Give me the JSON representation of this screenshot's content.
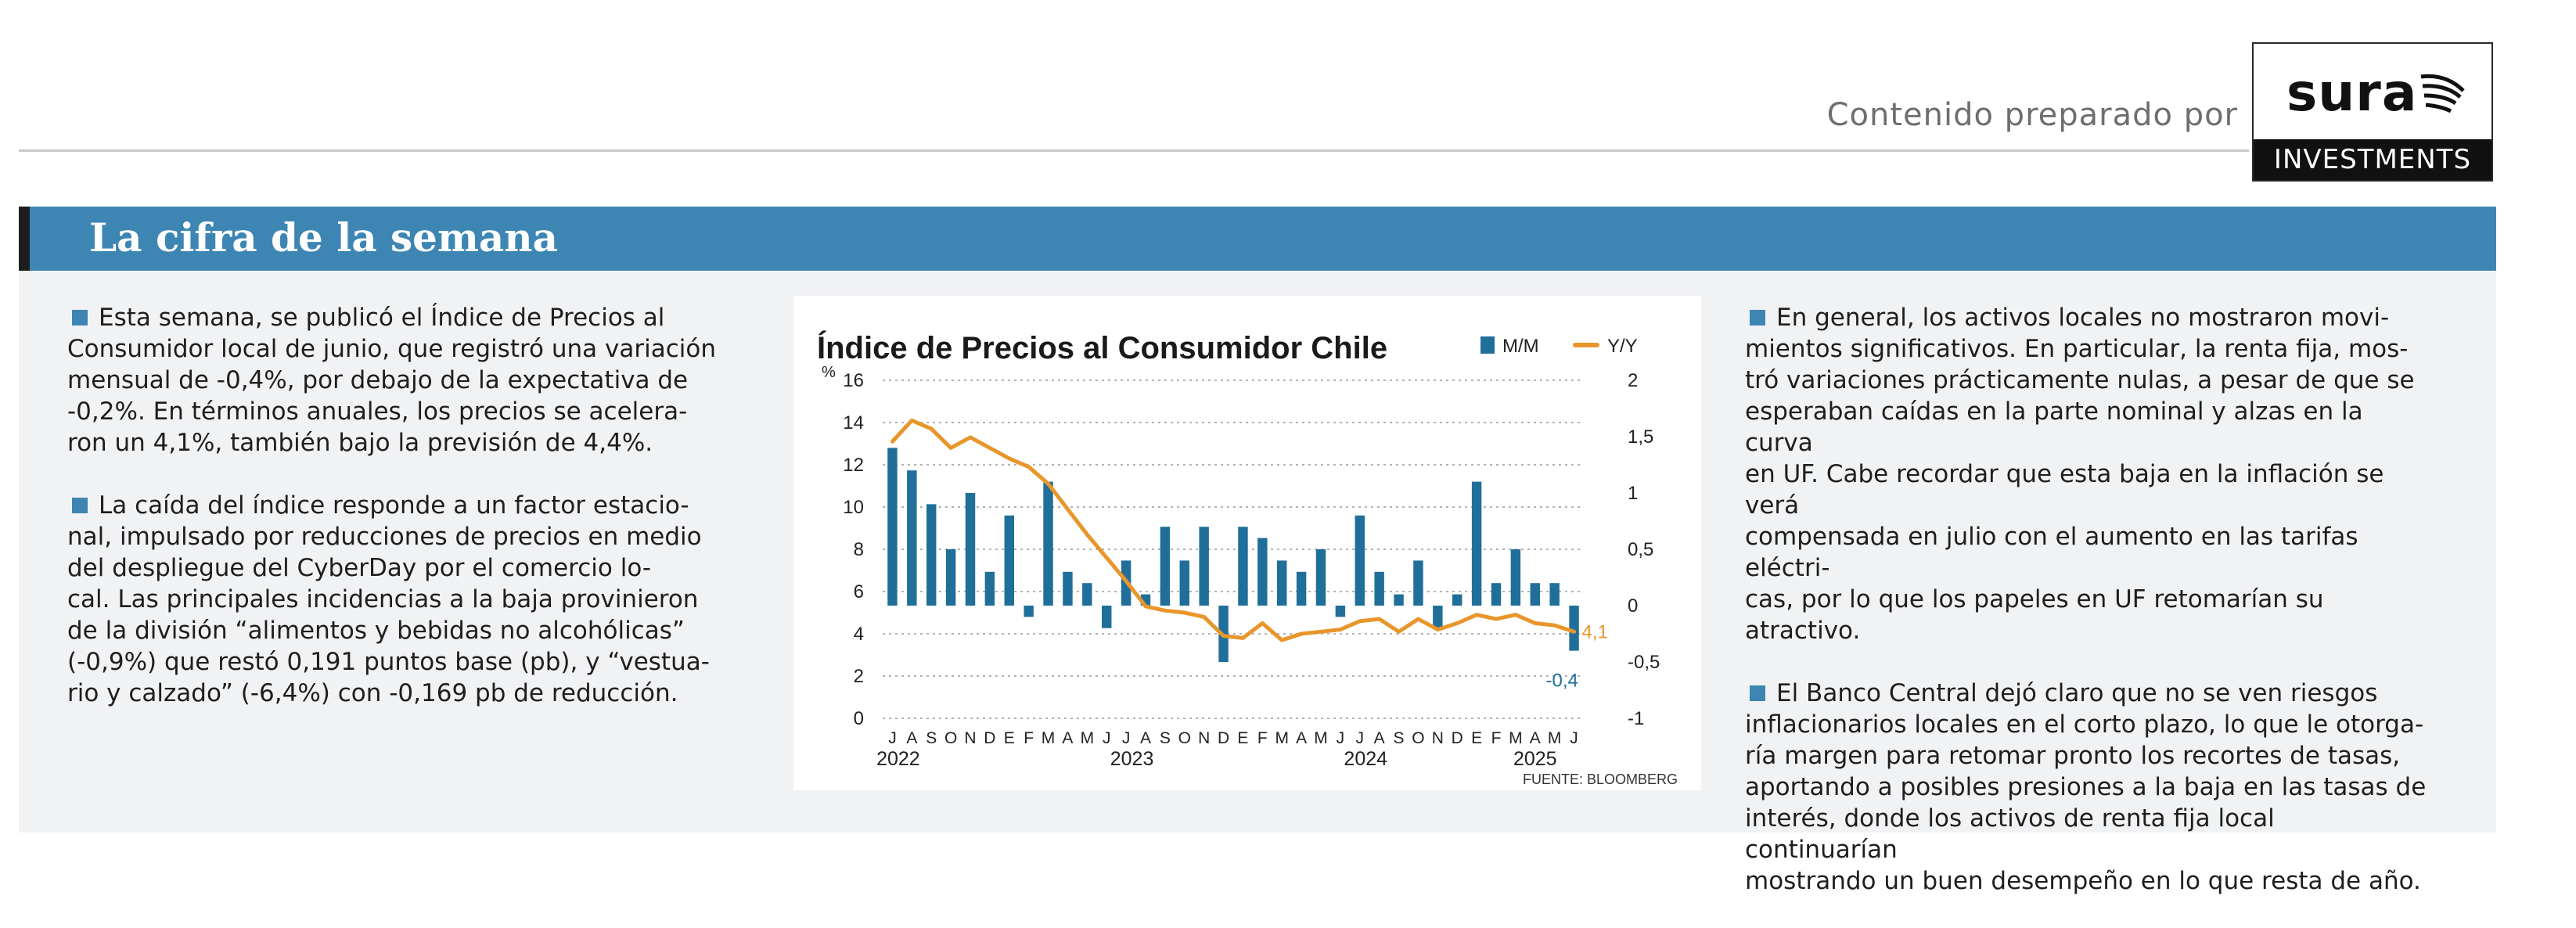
{
  "header": {
    "credit": "Contenido preparado por",
    "logo_word": "sura",
    "logo_sub": "INVESTMENTS"
  },
  "section": {
    "title": "La cifra de la semana"
  },
  "left_column": {
    "paragraphs": [
      [
        "Esta semana, se publicó el Índice de Precios al",
        "Consumidor local de junio, que registró una variación",
        "mensual de -0,4%, por debajo de la expectativa de",
        "-0,2%. En términos anuales, los precios se acelera-",
        "ron un 4,1%, también bajo la previsión de 4,4%."
      ],
      [
        "La caída del índice responde a un factor estacio-",
        "nal, impulsado por reducciones de precios en medio",
        "del despliegue del CyberDay por el comercio lo-",
        "cal. Las principales incidencias a la baja provinieron",
        "de la división “alimentos y bebidas no alcohólicas”",
        "(-0,9%) que restó 0,191 puntos base (pb), y “vestua-",
        "rio y calzado” (-6,4%) con -0,169 pb de reducción."
      ]
    ]
  },
  "right_column": {
    "paragraphs": [
      [
        "En general, los activos locales no mostraron movi-",
        "mientos significativos. En particular, la renta fija, mos-",
        "tró variaciones prácticamente nulas, a pesar de que se",
        "esperaban caídas en la parte nominal y alzas en la curva",
        "en UF. Cabe recordar que esta baja en la inflación se verá",
        "compensada en julio con el aumento en las tarifas eléctri-",
        "cas, por lo que los papeles en UF retomarían su atractivo."
      ],
      [
        "El Banco Central dejó claro que no se ven riesgos",
        "inflacionarios locales en el corto plazo, lo que le otorga-",
        "ría margen para retomar pronto los recortes de tasas,",
        "aportando a posibles presiones a la baja en las tasas de",
        "interés, donde los activos de renta fija local continuarían",
        "mostrando un buen desempeño en lo que resta de año."
      ]
    ]
  },
  "chart_data": {
    "type": "bar",
    "title": "Índice de Precios al Consumidor Chile",
    "source": "FUENTE: BLOOMBERG",
    "left_unit": "%",
    "colors": {
      "bar": "#1f6f9a",
      "line": "#e8962b",
      "grid": "#9a9a9a"
    },
    "categories": [
      "J",
      "A",
      "S",
      "O",
      "N",
      "D",
      "E",
      "F",
      "M",
      "A",
      "M",
      "J",
      "J",
      "A",
      "S",
      "O",
      "N",
      "D",
      "E",
      "F",
      "M",
      "A",
      "M",
      "J",
      "J",
      "A",
      "S",
      "O",
      "N",
      "D",
      "E",
      "F",
      "M",
      "A",
      "M",
      "J"
    ],
    "year_labels": [
      {
        "label": "2022",
        "index": 0.8
      },
      {
        "label": "2023",
        "index": 12.8
      },
      {
        "label": "2024",
        "index": 24.8
      },
      {
        "label": "2025",
        "index": 33.5
      }
    ],
    "left_axis": {
      "ylim": [
        0,
        16
      ],
      "ticks": [
        0,
        2,
        4,
        6,
        8,
        10,
        12,
        14,
        16
      ],
      "tick_labels": [
        "0",
        "2",
        "4",
        "6",
        "8",
        "10",
        "12",
        "14",
        "16"
      ]
    },
    "right_axis": {
      "ylim": [
        -1,
        2
      ],
      "ticks": [
        -1,
        -0.5,
        0,
        0.5,
        1,
        1.5,
        2
      ],
      "tick_labels": [
        "-1",
        "-0,5",
        "0",
        "0,5",
        "1",
        "1,5",
        "2"
      ]
    },
    "series": [
      {
        "name": "M/M",
        "kind": "bar",
        "axis": "right",
        "values": [
          1.4,
          1.2,
          0.9,
          0.5,
          1.0,
          0.3,
          0.8,
          -0.1,
          1.1,
          0.3,
          0.2,
          -0.2,
          0.4,
          0.1,
          0.7,
          0.4,
          0.7,
          -0.5,
          0.7,
          0.6,
          0.4,
          0.3,
          0.5,
          -0.1,
          0.8,
          0.3,
          0.1,
          0.4,
          -0.2,
          0.1,
          1.1,
          0.2,
          0.5,
          0.2,
          0.2,
          -0.4
        ]
      },
      {
        "name": "Y/Y",
        "kind": "line",
        "axis": "left",
        "values": [
          13.1,
          14.1,
          13.7,
          12.8,
          13.3,
          12.8,
          12.3,
          11.9,
          11.1,
          9.9,
          8.7,
          7.6,
          6.5,
          5.3,
          5.1,
          5.0,
          4.8,
          3.9,
          3.8,
          4.5,
          3.7,
          4.0,
          4.1,
          4.2,
          4.6,
          4.7,
          4.1,
          4.7,
          4.2,
          4.5,
          4.9,
          4.7,
          4.9,
          4.5,
          4.4,
          4.1
        ]
      }
    ],
    "annotations": [
      {
        "text": "4,1",
        "series": "Y/Y"
      },
      {
        "text": "-0,4",
        "series": "M/M"
      }
    ]
  }
}
